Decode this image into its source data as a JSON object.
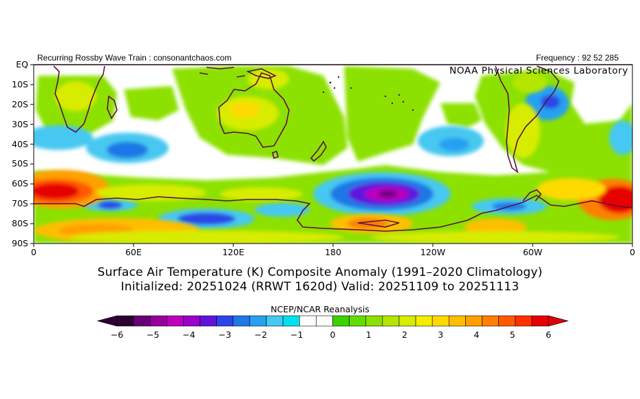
{
  "header": {
    "left_text": "Recurring Rossby Wave Train : consonantchaos.com",
    "right_text": "Frequency : 92 52 285",
    "watermark": "NOAA Physical Sciences Laboratory"
  },
  "map": {
    "lat_labels": [
      "EQ",
      "10S",
      "20S",
      "30S",
      "40S",
      "50S",
      "60S",
      "70S",
      "80S",
      "90S"
    ],
    "lon_labels": [
      "0",
      "60E",
      "120E",
      "180",
      "120W",
      "60W",
      "0"
    ],
    "background_color": "#ffffff",
    "coast_color": "#5a1046"
  },
  "title": {
    "line1": "Surface Air Temperature (K) Composite Anomaly (1991–2020 Climatology)",
    "line2": "Initialized: 20251024 (RRWT 1620d) Valid: 20251109 to 20251113"
  },
  "colorbar": {
    "label": "NCEP/NCAR Reanalysis",
    "tick_labels": [
      "−6",
      "−5",
      "−4",
      "−3",
      "−2",
      "−1",
      "0",
      "1",
      "2",
      "3",
      "4",
      "5",
      "6"
    ],
    "tick_values": [
      -6,
      -5,
      -4,
      -3,
      -2,
      -1,
      0,
      1,
      2,
      3,
      4,
      5,
      6
    ],
    "min": -6,
    "max": 6,
    "step": 0.5,
    "colors": [
      "#2e0033",
      "#690079",
      "#98009c",
      "#be00be",
      "#9b00cd",
      "#5f14dc",
      "#2a46e6",
      "#1e78e6",
      "#28a0f0",
      "#46c8f0",
      "#00e1f0",
      "#ffffff",
      "#ffffff",
      "#3cd200",
      "#64dc00",
      "#8ce100",
      "#b4e600",
      "#d7ec00",
      "#f4ee00",
      "#ffda00",
      "#ffbe00",
      "#ffa000",
      "#ff7f00",
      "#ff5a00",
      "#ff3000",
      "#e60000"
    ]
  }
}
